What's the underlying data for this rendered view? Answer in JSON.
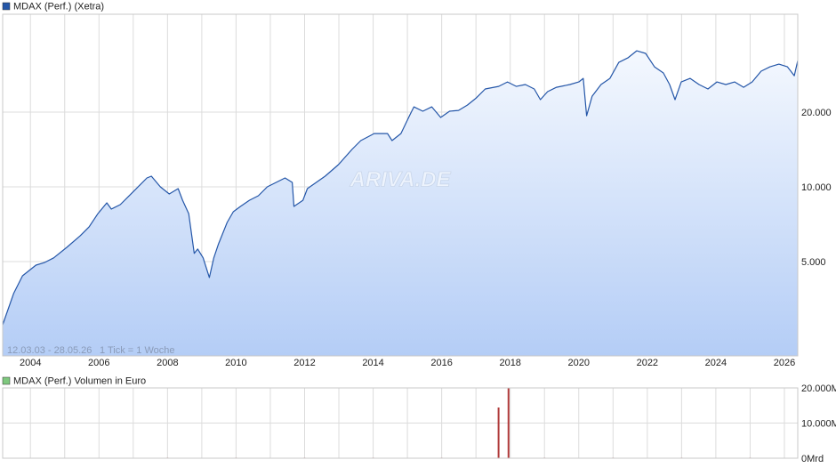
{
  "chart_data": [
    {
      "type": "line",
      "log_scale": true,
      "grid": true,
      "xlim": [
        2003.19,
        2026.39
      ],
      "ylim": [
        2085,
        49600
      ],
      "xticks": [
        2004,
        2006,
        2008,
        2010,
        2012,
        2014,
        2016,
        2018,
        2020,
        2022,
        2024,
        2026
      ],
      "minor_xticks": [
        2005,
        2007,
        2009,
        2011,
        2013,
        2015,
        2017,
        2019,
        2021,
        2023,
        2025
      ],
      "yticks": [
        {
          "value": 20000,
          "label": "20.000"
        },
        {
          "value": 10000,
          "label": "10.000"
        },
        {
          "value": 5000,
          "label": "5.000"
        }
      ],
      "annotations": [
        "12.03.03 - 28.05.26",
        "1 Tick = 1 Woche",
        "ARIVA.DE"
      ],
      "series": [
        {
          "name": "MDAX (Perf.) (Xetra)",
          "color": "#2456a8",
          "x": [
            2003.19,
            2003.51,
            2003.77,
            2004.16,
            2004.42,
            2004.68,
            2005.06,
            2005.45,
            2005.71,
            2005.97,
            2006.23,
            2006.36,
            2006.62,
            2007.01,
            2007.4,
            2007.53,
            2007.79,
            2008.05,
            2008.31,
            2008.44,
            2008.62,
            2008.78,
            2008.88,
            2009.04,
            2009.22,
            2009.35,
            2009.48,
            2009.74,
            2009.92,
            2010.13,
            2010.39,
            2010.65,
            2010.91,
            2011.17,
            2011.43,
            2011.64,
            2011.69,
            2011.95,
            2012.08,
            2012.34,
            2012.6,
            2012.99,
            2013.38,
            2013.64,
            2014.03,
            2014.42,
            2014.55,
            2014.81,
            2015.06,
            2015.19,
            2015.45,
            2015.71,
            2015.97,
            2016.23,
            2016.49,
            2016.75,
            2017.01,
            2017.27,
            2017.66,
            2017.92,
            2018.18,
            2018.44,
            2018.7,
            2018.88,
            2019.09,
            2019.35,
            2019.74,
            2020.0,
            2020.13,
            2020.23,
            2020.39,
            2020.65,
            2020.91,
            2021.17,
            2021.43,
            2021.69,
            2021.95,
            2022.21,
            2022.47,
            2022.65,
            2022.81,
            2022.99,
            2023.25,
            2023.51,
            2023.77,
            2024.03,
            2024.29,
            2024.55,
            2024.81,
            2025.06,
            2025.32,
            2025.58,
            2025.84,
            2026.09,
            2026.29,
            2026.39
          ],
          "values": [
            2784,
            3718,
            4384,
            4840,
            4962,
            5176,
            5706,
            6350,
            6894,
            7802,
            8620,
            8140,
            8478,
            9592,
            10862,
            11044,
            10000,
            9362,
            9836,
            8834,
            7802,
            5396,
            5616,
            5176,
            4314,
            5176,
            5854,
            7188,
            7938,
            8340,
            8834,
            9210,
            10000,
            10424,
            10862,
            10424,
            8340,
            8834,
            9836,
            10424,
            11044,
            12296,
            14142,
            15360,
            16406,
            16406,
            15360,
            16406,
            19346,
            21010,
            20166,
            21010,
            19038,
            20166,
            20332,
            21362,
            22820,
            24788,
            25406,
            26478,
            25406,
            25832,
            24788,
            22452,
            24184,
            25192,
            25832,
            26478,
            27362,
            19346,
            23200,
            25832,
            27362,
            31748,
            33084,
            35332,
            34488,
            30464,
            28758,
            25832,
            22452,
            26478,
            27362,
            25832,
            24788,
            26478,
            25832,
            26478,
            25192,
            26478,
            29240,
            30464,
            31230,
            30464,
            28050,
            32266
          ]
        }
      ]
    },
    {
      "type": "bar",
      "xlim": [
        2003.19,
        2026.39
      ],
      "ylim": [
        0,
        20000
      ],
      "yticks": [
        {
          "value": 20000,
          "label": "20.000M"
        },
        {
          "value": 10000,
          "label": "10.000M"
        },
        {
          "value": 0,
          "label": "0Mrd"
        }
      ],
      "series": [
        {
          "name": "MDAX (Perf.) Volumen in Euro",
          "color": "#b03a3a",
          "x": [
            2005,
            2008,
            2010,
            2012,
            2014,
            2016,
            2017.66,
            2017.95,
            2019,
            2021,
            2023,
            2025
          ],
          "values": [
            100,
            150,
            150,
            150,
            150,
            150,
            14430,
            21000,
            150,
            150,
            150,
            150
          ]
        }
      ]
    }
  ]
}
